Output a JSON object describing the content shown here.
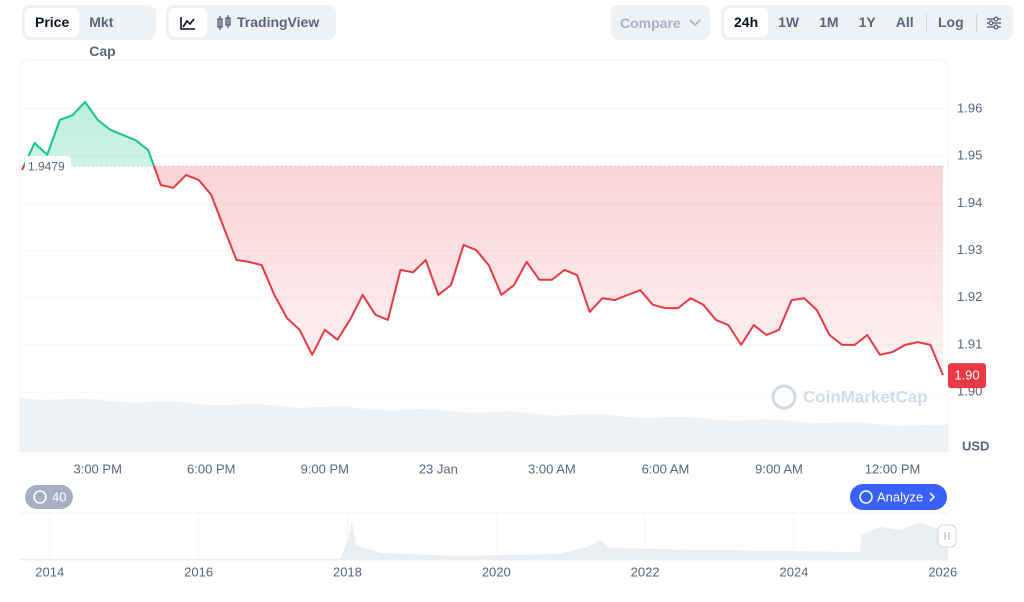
{
  "toolbar": {
    "tabs": [
      "Price",
      "Mkt Cap"
    ],
    "tradingview": "TradingView",
    "compare": "Compare",
    "ranges": [
      "24h",
      "1W",
      "1M",
      "1Y",
      "All"
    ],
    "log": "Log"
  },
  "chart_data": {
    "type": "line",
    "currency": "USD",
    "watermark": "CoinMarketCap",
    "categories": [
      null,
      null,
      null,
      null,
      null,
      null,
      "3:00 PM",
      null,
      null,
      null,
      null,
      null,
      null,
      null,
      null,
      "6:00 PM",
      null,
      null,
      null,
      null,
      null,
      null,
      null,
      null,
      "9:00 PM",
      null,
      null,
      null,
      null,
      null,
      null,
      null,
      null,
      "23 Jan",
      null,
      null,
      null,
      null,
      null,
      null,
      null,
      null,
      "3:00 AM",
      null,
      null,
      null,
      null,
      null,
      null,
      null,
      null,
      "6:00 AM",
      null,
      null,
      null,
      null,
      null,
      null,
      null,
      null,
      "9:00 AM",
      null,
      null,
      null,
      null,
      null,
      null,
      null,
      null,
      "12:00 PM",
      null,
      null,
      null,
      null
    ],
    "values": [
      1.9471,
      1.9528,
      1.9503,
      1.9577,
      1.9587,
      1.9615,
      1.9577,
      1.9556,
      1.9545,
      1.9534,
      1.9513,
      1.9439,
      1.9433,
      1.946,
      1.945,
      1.9418,
      1.9348,
      1.928,
      1.9276,
      1.9269,
      1.9206,
      1.9157,
      1.9132,
      1.9079,
      1.9132,
      1.9111,
      1.9153,
      1.9206,
      1.9164,
      1.9153,
      1.9259,
      1.9254,
      1.928,
      1.9206,
      1.9227,
      1.9312,
      1.9301,
      1.9269,
      1.9206,
      1.9227,
      1.9276,
      1.9238,
      1.9238,
      1.9259,
      1.9248,
      1.917,
      1.9199,
      1.9195,
      1.9206,
      1.9216,
      1.9185,
      1.9178,
      1.9178,
      1.9199,
      1.9185,
      1.9153,
      1.9142,
      1.91,
      1.9142,
      1.9121,
      1.9132,
      1.9195,
      1.9199,
      1.9174,
      1.9121,
      1.91,
      1.91,
      1.9121,
      1.9079,
      1.9085,
      1.91,
      1.9106,
      1.91,
      1.9036
    ],
    "value_labels": [
      null,
      null,
      null,
      null,
      null,
      null,
      null,
      null,
      null,
      null,
      null,
      null,
      null,
      null,
      null,
      null,
      null,
      null,
      null,
      null,
      null,
      null,
      null,
      null,
      null,
      null,
      null,
      null,
      null,
      null,
      null,
      null,
      null,
      null,
      null,
      null,
      null,
      null,
      null,
      null,
      null,
      null,
      null,
      null,
      null,
      null,
      null,
      null,
      null,
      null,
      null,
      null,
      null,
      null,
      null,
      null,
      null,
      null,
      null,
      null,
      null,
      null,
      null,
      null,
      null,
      null,
      null,
      null,
      null,
      null,
      null,
      null,
      null,
      "1.90"
    ],
    "baseline": 1.9479,
    "up_color": "#16c784",
    "down_color": "#ea3943",
    "ylim": [
      1.8873,
      1.9704
    ],
    "yticks": [
      {
        "value": 1.9,
        "label": "1.90"
      },
      1.91,
      1.92,
      1.93,
      1.94,
      1.95,
      1.96
    ],
    "grid": true,
    "history_badge": "40",
    "analyze": "Analyze",
    "navigator": {
      "xlim": [
        2013.6,
        2026.07
      ],
      "xticks": [
        2014,
        2016,
        2018,
        2020,
        2022,
        2024,
        2026
      ]
    }
  }
}
